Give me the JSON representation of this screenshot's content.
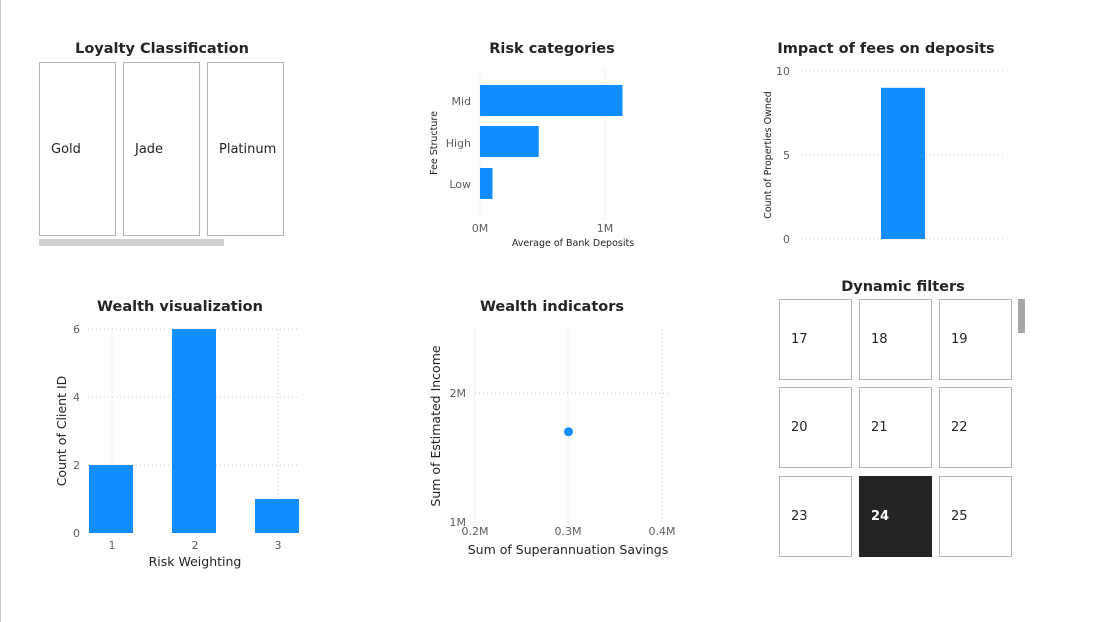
{
  "loyalty": {
    "title": "Loyalty Classification",
    "items": [
      "Gold",
      "Jade",
      "Platinum"
    ]
  },
  "risk": {
    "title": "Risk categories",
    "chart_data": {
      "type": "bar",
      "orientation": "horizontal",
      "categories": [
        "Mid",
        "High",
        "Low"
      ],
      "values": [
        1140000,
        470000,
        100000
      ],
      "xlabel": "Average of Bank Deposits",
      "ylabel": "Fee Structure",
      "xticks": [
        "0M",
        "1M"
      ],
      "xlim": [
        0,
        1250000
      ],
      "color": "#118dff",
      "grid": true
    }
  },
  "fees": {
    "title": "Impact of fees on deposits",
    "chart_data": {
      "type": "bar",
      "categories": [
        ""
      ],
      "values": [
        9
      ],
      "ylabel": "Count of Properties Owned",
      "yticks": [
        "10",
        "5",
        "0"
      ],
      "ylim": [
        0,
        10
      ],
      "color": "#118dff",
      "grid": true
    }
  },
  "wealthviz": {
    "title": "Wealth visualization",
    "chart_data": {
      "type": "bar",
      "categories": [
        "1",
        "2",
        "3"
      ],
      "values": [
        2,
        6,
        1
      ],
      "xlabel": "Risk Weighting",
      "ylabel": "Count of Client ID",
      "yticks": [
        "6",
        "4",
        "2",
        "0"
      ],
      "ylim": [
        0,
        6
      ],
      "color": "#118dff",
      "grid": true
    }
  },
  "indicators": {
    "title": "Wealth indicators",
    "chart_data": {
      "type": "scatter",
      "points": [
        {
          "x": 300000,
          "y": 1700000
        }
      ],
      "xlabel": "Sum of Superannuation Savings",
      "ylabel": "Sum of Estimated Income",
      "xticks": [
        "0.2M",
        "0.3M",
        "0.4M"
      ],
      "yticks": [
        "2M",
        "1M"
      ],
      "xlim": [
        200000,
        400000
      ],
      "ylim": [
        1000000,
        2500000
      ],
      "color": "#118dff",
      "grid": true
    }
  },
  "dynamic": {
    "title": "Dynamic filters",
    "items": [
      "17",
      "18",
      "19",
      "20",
      "21",
      "22",
      "23",
      "24",
      "25"
    ],
    "selected": "24"
  }
}
